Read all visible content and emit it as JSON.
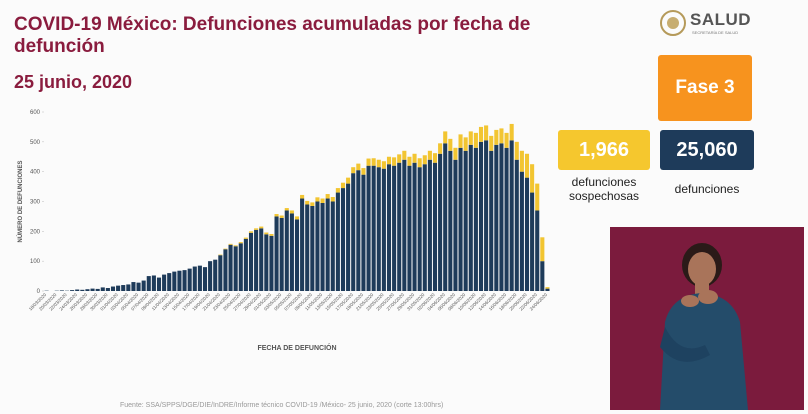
{
  "chart_data": {
    "type": "bar",
    "stacked": true,
    "title": "COVID-19 México: Defunciones acumuladas por fecha de defunción",
    "subtitle": "25  junio, 2020",
    "xlabel": "FECHA DE DEFUNCIÓN",
    "ylabel": "NÚMERO DE DEFUNCIONES",
    "ylim": [
      0,
      600
    ],
    "yticks": [
      0,
      100,
      200,
      300,
      400,
      500,
      600
    ],
    "categories": [
      "18/03/2020",
      null,
      "20/03/2020",
      null,
      "22/03/2020",
      null,
      "24/03/2020",
      null,
      "26/03/2020",
      null,
      "28/03/2020",
      null,
      "30/03/2020",
      null,
      "01/04/2020",
      null,
      "03/04/2020",
      null,
      "05/04/2020",
      null,
      "07/04/2020",
      null,
      "09/04/2020",
      null,
      "11/04/2020",
      null,
      "13/04/2020",
      null,
      "15/04/2020",
      null,
      "17/04/2020",
      null,
      "19/04/2020",
      null,
      "21/04/2020",
      null,
      "23/04/2020",
      null,
      "25/04/2020",
      null,
      "27/04/2020",
      null,
      "29/04/2020",
      null,
      "01/05/2020",
      null,
      "03/05/2020",
      null,
      "05/05/2020",
      null,
      "07/05/2020",
      null,
      "09/05/2020",
      null,
      "11/05/2020",
      null,
      "13/05/2020",
      null,
      "15/05/2020",
      null,
      "17/05/2020",
      null,
      "19/05/2020",
      null,
      "21/05/2020",
      null,
      "23/05/2020",
      null,
      "25/05/2020",
      null,
      "27/05/2020",
      null,
      "29/05/2020",
      null,
      "31/05/2020",
      null,
      "02/06/2020",
      null,
      "04/06/2020",
      null,
      "06/06/2020",
      null,
      "08/06/2020",
      null,
      "10/06/2020",
      null,
      "12/06/2020",
      null,
      "14/06/2020",
      null,
      "16/06/2020",
      null,
      "18/06/2020",
      null,
      "20/06/2020",
      null,
      "22/06/2020",
      null,
      "24/06/2020"
    ],
    "series": [
      {
        "color": "#1e3b5a",
        "values": [
          1,
          0,
          1,
          2,
          1,
          3,
          5,
          4,
          6,
          8,
          7,
          12,
          10,
          15,
          18,
          20,
          22,
          30,
          28,
          35,
          50,
          52,
          45,
          55,
          60,
          65,
          68,
          70,
          75,
          82,
          85,
          80,
          100,
          105,
          120,
          140,
          155,
          150,
          160,
          175,
          195,
          205,
          210,
          190,
          185,
          250,
          245,
          270,
          260,
          240,
          310,
          290,
          285,
          300,
          295,
          310,
          300,
          330,
          345,
          360,
          395,
          405,
          390,
          420,
          420,
          415,
          410,
          425,
          420,
          430,
          440,
          420,
          430,
          415,
          425,
          440,
          430,
          460,
          495,
          470,
          440,
          480,
          470,
          490,
          480,
          500,
          505,
          470,
          490,
          495,
          480,
          505,
          440,
          400,
          380,
          330,
          270,
          100,
          8
        ]
      },
      {
        "color": "#f2c531",
        "values": [
          0,
          0,
          0,
          0,
          0,
          0,
          0,
          0,
          0,
          0,
          0,
          0,
          0,
          0,
          0,
          0,
          0,
          0,
          0,
          0,
          0,
          0,
          0,
          0,
          0,
          0,
          0,
          0,
          0,
          0,
          0,
          0,
          0,
          0,
          2,
          2,
          3,
          3,
          4,
          4,
          5,
          5,
          6,
          6,
          6,
          8,
          8,
          8,
          10,
          10,
          12,
          12,
          12,
          14,
          15,
          15,
          15,
          15,
          18,
          20,
          20,
          22,
          22,
          24,
          25,
          25,
          25,
          25,
          28,
          28,
          30,
          30,
          30,
          30,
          30,
          30,
          32,
          35,
          40,
          40,
          40,
          45,
          45,
          45,
          50,
          50,
          50,
          50,
          50,
          50,
          50,
          55,
          60,
          70,
          80,
          95,
          90,
          80,
          5
        ]
      }
    ]
  },
  "logo": {
    "name": "SALUD",
    "subtitle": "SECRETARÍA DE SALUD"
  },
  "phase": "Fase 3",
  "stats": [
    {
      "value": "1,966",
      "label": "defunciones sospechosas"
    },
    {
      "value": "25,060",
      "label": "defunciones"
    }
  ],
  "footer": "Fuente: SSA/SPPS/DGE/DIE/InDRE/Informe técnico COVID-19 /México- 25 junio, 2020 (corte 13:00hrs)"
}
